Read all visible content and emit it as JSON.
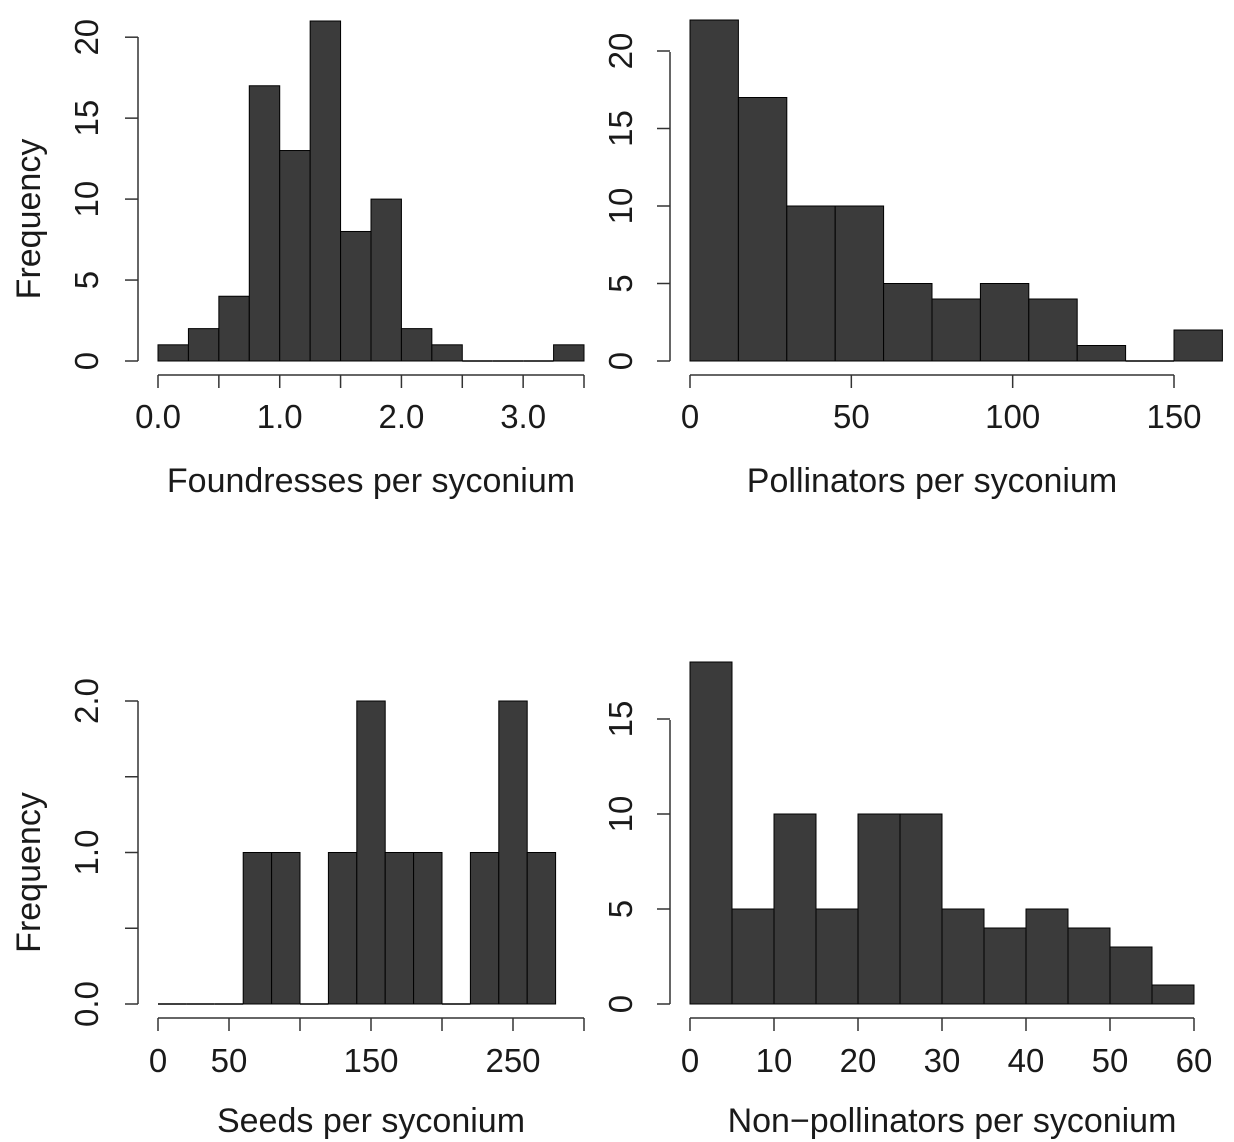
{
  "chart_data": [
    {
      "type": "bar",
      "xlabel": "Foundresses per syconium",
      "ylabel": "Frequency",
      "bin_edges": [
        0,
        0.25,
        0.5,
        0.75,
        1.0,
        1.25,
        1.5,
        1.75,
        2.0,
        2.25,
        2.5,
        2.75,
        3.0,
        3.25,
        3.5
      ],
      "values": [
        1,
        2,
        4,
        17,
        13,
        21,
        8,
        10,
        2,
        1,
        0,
        0,
        0,
        1
      ],
      "x_ticks": [
        "0.0",
        "1.0",
        "2.0",
        "3.0"
      ],
      "x_tick_values": [
        0,
        1,
        2,
        3
      ],
      "x_minor_tick_values": [
        0.5,
        1.5,
        2.5,
        3.5
      ],
      "xlim": [
        0,
        3.5
      ],
      "y_ticks": [
        "0",
        "5",
        "10",
        "15",
        "20"
      ],
      "y_tick_values": [
        0,
        5,
        10,
        15,
        20
      ],
      "ylim": [
        0,
        21
      ]
    },
    {
      "type": "bar",
      "xlabel": "Pollinators per syconium",
      "ylabel": "",
      "bin_edges": [
        0,
        15,
        30,
        45,
        60,
        75,
        90,
        105,
        120,
        135,
        150,
        165
      ],
      "values": [
        22,
        17,
        10,
        10,
        5,
        4,
        5,
        4,
        1,
        0,
        2
      ],
      "x_ticks": [
        "0",
        "50",
        "100",
        "150"
      ],
      "x_tick_values": [
        0,
        50,
        100,
        150
      ],
      "x_minor_tick_values": [],
      "xlim": [
        0,
        150
      ],
      "y_ticks": [
        "0",
        "5",
        "10",
        "15",
        "20"
      ],
      "y_tick_values": [
        0,
        5,
        10,
        15,
        20
      ],
      "ylim": [
        0,
        22
      ]
    },
    {
      "type": "bar",
      "xlabel": "Seeds per syconium",
      "ylabel": "Frequency",
      "bin_edges": [
        0,
        20,
        40,
        60,
        80,
        100,
        120,
        140,
        160,
        180,
        200,
        220,
        240,
        260,
        280
      ],
      "values": [
        0,
        0,
        0,
        1,
        1,
        0,
        1,
        2,
        1,
        1,
        0,
        1,
        2,
        1
      ],
      "x_ticks": [
        "0",
        "50",
        "150",
        "250"
      ],
      "x_tick_values": [
        0,
        50,
        150,
        250
      ],
      "x_minor_tick_values": [
        100,
        200,
        300
      ],
      "xlim": [
        0,
        300
      ],
      "y_ticks": [
        "0.0",
        "1.0",
        "2.0"
      ],
      "y_tick_values": [
        0,
        1,
        2
      ],
      "y_minor_tick_values": [
        0.5,
        1.5
      ],
      "ylim": [
        0,
        2
      ]
    },
    {
      "type": "bar",
      "xlabel": "Non−pollinators per syconium",
      "ylabel": "",
      "bin_edges": [
        0,
        5,
        10,
        15,
        20,
        25,
        30,
        35,
        40,
        45,
        50,
        55,
        60
      ],
      "values": [
        18,
        5,
        10,
        5,
        10,
        10,
        5,
        4,
        5,
        4,
        3,
        1
      ],
      "x_ticks": [
        "0",
        "10",
        "20",
        "30",
        "40",
        "50",
        "60"
      ],
      "x_tick_values": [
        0,
        10,
        20,
        30,
        40,
        50,
        60
      ],
      "x_minor_tick_values": [],
      "xlim": [
        0,
        60
      ],
      "y_ticks": [
        "0",
        "5",
        "10",
        "15"
      ],
      "y_tick_values": [
        0,
        5,
        10,
        15
      ],
      "ylim": [
        0,
        18
      ]
    }
  ]
}
